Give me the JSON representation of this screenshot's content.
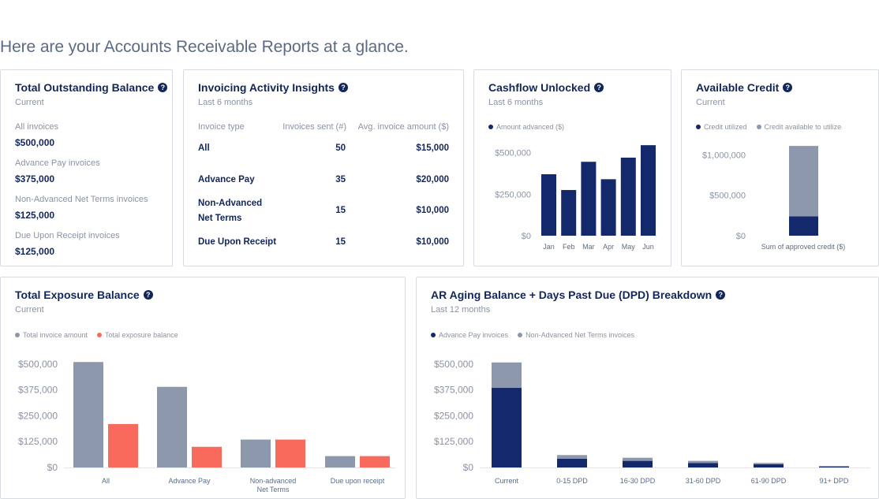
{
  "headline": "Here are your Accounts Receivable Reports at a glance.",
  "colors": {
    "navy": "#13296b",
    "gray": "#8e98ad",
    "coral": "#f86b5c"
  },
  "total_outstanding": {
    "title": "Total Outstanding Balance",
    "help_icon": "help-icon",
    "subtitle": "Current",
    "items": [
      {
        "label": "All invoices",
        "value": "$500,000"
      },
      {
        "label": "Advance Pay invoices",
        "value": "$375,000"
      },
      {
        "label": "Non-Advanced Net Terms invoices",
        "value": "$125,000"
      },
      {
        "label": "Due Upon Receipt invoices",
        "value": "$125,000"
      }
    ]
  },
  "invoicing_activity": {
    "title": "Invoicing Activity Insights",
    "subtitle": "Last 6 months",
    "headers": [
      "Invoice type",
      "Invoices sent (#)",
      "Avg. invoice amount ($)"
    ],
    "rows": [
      {
        "type_line1": "All",
        "type_line2": "",
        "sent": "50",
        "avg": "$15,000"
      },
      {
        "type_line1": "Advance Pay",
        "type_line2": "",
        "sent": "35",
        "avg": "$20,000"
      },
      {
        "type_line1": "Non-Advanced",
        "type_line2": "Net Terms",
        "sent": "15",
        "avg": "$10,000"
      },
      {
        "type_line1": "Due Upon Receipt",
        "type_line2": "",
        "sent": "15",
        "avg": "$10,000"
      }
    ]
  },
  "cashflow": {
    "title": "Cashflow Unlocked",
    "subtitle": "Last 6 months",
    "legend": [
      "Amount advanced ($)"
    ]
  },
  "available_credit": {
    "title": "Available Credit",
    "subtitle": "Current",
    "legend": [
      "Credit utilized",
      "Credit available to utilize"
    ]
  },
  "exposure": {
    "title": "Total Exposure Balance",
    "subtitle": "Current",
    "legend": [
      "Total invoice amount",
      "Total exposure balance"
    ]
  },
  "aging": {
    "title": "AR Aging Balance + Days Past Due (DPD) Breakdown",
    "subtitle": "Last 12 months",
    "legend": [
      "Advance Pay invoices",
      "Non-Advanced Net Terms invoices"
    ]
  },
  "chart_data": [
    {
      "id": "cashflow",
      "type": "bar",
      "title": "Cashflow Unlocked",
      "categories": [
        "Jan",
        "Feb",
        "Mar",
        "Apr",
        "May",
        "Jun"
      ],
      "series": [
        {
          "name": "Amount advanced ($)",
          "values": [
            370000,
            275000,
            445000,
            340000,
            470000,
            545000
          ]
        }
      ],
      "ylim": [
        0,
        560000
      ],
      "yticks": [
        0,
        250000,
        500000
      ],
      "ytick_labels": [
        "$0",
        "$250,000",
        "$500,000"
      ],
      "xlabel": "",
      "ylabel": ""
    },
    {
      "id": "credit",
      "type": "bar",
      "stacked": true,
      "title": "Available Credit",
      "categories": [
        ""
      ],
      "series": [
        {
          "name": "Credit utilized",
          "values": [
            240000
          ]
        },
        {
          "name": "Credit available to utilize",
          "values": [
            870000
          ]
        }
      ],
      "ylim": [
        0,
        1150000
      ],
      "yticks": [
        0,
        500000,
        1000000
      ],
      "ytick_labels": [
        "$0",
        "$500,000",
        "$1,000,000"
      ],
      "xlabel": "Sum of approved credit ($)",
      "ylabel": ""
    },
    {
      "id": "exposure",
      "type": "bar",
      "title": "Total Exposure Balance",
      "categories": [
        "All",
        "Advance Pay",
        "Non-advanced|Net Terms",
        "Due upon receipt"
      ],
      "series": [
        {
          "name": "Total invoice amount",
          "values": [
            510000,
            390000,
            135000,
            55000
          ]
        },
        {
          "name": "Total exposure balance",
          "values": [
            210000,
            100000,
            135000,
            55000
          ]
        }
      ],
      "ylim": [
        0,
        530000
      ],
      "yticks": [
        0,
        125000,
        250000,
        375000,
        500000
      ],
      "ytick_labels": [
        "$0",
        "$125,000",
        "$250,000",
        "$375,000",
        "$500,000"
      ],
      "xlabel": "",
      "ylabel": ""
    },
    {
      "id": "aging",
      "type": "bar",
      "stacked": true,
      "title": "AR Aging Balance + Days Past Due (DPD) Breakdown",
      "categories": [
        "Current",
        "0-15 DPD",
        "16-30 DPD",
        "31-60 DPD",
        "61-90 DPD",
        "91+ DPD"
      ],
      "series": [
        {
          "name": "Advance Pay invoices",
          "values": [
            385000,
            42000,
            32000,
            22000,
            16000,
            5000
          ]
        },
        {
          "name": "Non-Advanced Net Terms invoices",
          "values": [
            123000,
            18000,
            15000,
            10000,
            6000,
            2000
          ]
        }
      ],
      "ylim": [
        0,
        530000
      ],
      "yticks": [
        0,
        125000,
        250000,
        375000,
        500000
      ],
      "ytick_labels": [
        "$0",
        "$125,000",
        "$250,000",
        "$375,000",
        "$500,000"
      ],
      "xlabel": "",
      "ylabel": ""
    }
  ]
}
